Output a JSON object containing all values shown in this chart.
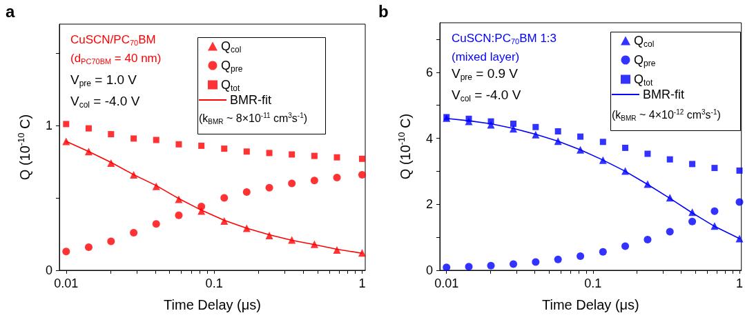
{
  "chart_data": [
    {
      "type": "scatter",
      "title": "a",
      "subtitle": "CuSCN/PC$_{70}$BM\n(d$_{PC70BM}$ = 40 nm)",
      "xlabel": "Time Delay (μs)",
      "ylabel": "Q (10$^{-10}$ C)",
      "legend_title": "(k$_{BMR}$ ~ 8×10$^{-11}$ cm$^{3}$s$^{-1}$)",
      "annotations": [
        "V$_{pre}$ = 1.0 V",
        "V$_{col}$ = -4.0 V"
      ],
      "log": "x",
      "grid": false,
      "legend": "top right",
      "xlim": [
        0.009,
        1.05
      ],
      "xticks": [
        0.01,
        {
          "value": 0.02,
          "label": null
        },
        {
          "value": 0.03,
          "label": null
        },
        {
          "value": 0.04,
          "label": null
        },
        {
          "value": 0.05,
          "label": null
        },
        {
          "value": 0.06,
          "label": null
        },
        {
          "value": 0.07,
          "label": null
        },
        {
          "value": 0.08,
          "label": null
        },
        {
          "value": 0.09,
          "label": null
        },
        0.1,
        {
          "value": 0.2,
          "label": null
        },
        {
          "value": 0.3,
          "label": null
        },
        {
          "value": 0.4,
          "label": null
        },
        {
          "value": 0.5,
          "label": null
        },
        {
          "value": 0.6,
          "label": null
        },
        {
          "value": 0.7,
          "label": null
        },
        {
          "value": 0.8,
          "label": null
        },
        {
          "value": 0.9,
          "label": null
        },
        1
      ],
      "ylim": [
        0,
        1.7
      ],
      "yticks": [
        0,
        {
          "value": 0.5,
          "label": null
        },
        1,
        {
          "value": 1.5,
          "label": null
        }
      ],
      "x": [
        0.01,
        0.0142,
        0.0201,
        0.0286,
        0.0406,
        0.0577,
        0.082,
        0.117,
        0.166,
        0.236,
        0.335,
        0.476,
        0.676,
        1
      ],
      "series": [
        {
          "name": "Q$_{col}$",
          "marker": "triangle",
          "color": "#ff0000",
          "values": [
            0.89,
            0.82,
            0.74,
            0.66,
            0.58,
            0.49,
            0.41,
            0.34,
            0.29,
            0.24,
            0.21,
            0.18,
            0.14,
            0.12
          ]
        },
        {
          "name": "Q$_{pre}$",
          "marker": "circle",
          "color": "#ff0000",
          "values": [
            0.13,
            0.16,
            0.2,
            0.26,
            0.32,
            0.38,
            0.44,
            0.5,
            0.54,
            0.57,
            0.6,
            0.62,
            0.64,
            0.66
          ]
        },
        {
          "name": "Q$_{tot}$",
          "marker": "square",
          "color": "#ff0000",
          "values": [
            1.01,
            0.98,
            0.94,
            0.91,
            0.9,
            0.87,
            0.86,
            0.84,
            0.82,
            0.81,
            0.8,
            0.79,
            0.78,
            0.77
          ]
        },
        {
          "name": "BMR-fit",
          "type": "line",
          "marker": "none",
          "line_style": "solid",
          "color": "#ff0000",
          "values": [
            0.89,
            0.82,
            0.745,
            0.66,
            0.585,
            0.495,
            0.415,
            0.345,
            0.29,
            0.245,
            0.207,
            0.177,
            0.145,
            0.118
          ]
        }
      ]
    },
    {
      "type": "scatter",
      "title": "b",
      "subtitle": "CuSCN:PC$_{70}$BM 1:3\n(mixed layer)",
      "xlabel": "Time Delay (μs)",
      "ylabel": "Q (10$^{-10}$ C)",
      "legend_title": "(k$_{BMR}$ ~ 4×10$^{-12}$ cm$^{3}$s$^{-1}$)",
      "annotations": [
        "V$_{pre}$ = 0.9 V",
        "V$_{col}$ = -4.0 V"
      ],
      "log": "x",
      "grid": false,
      "legend": "top right",
      "xlim": [
        0.009,
        1.03
      ],
      "xticks": [
        0.01,
        {
          "value": 0.02,
          "label": null
        },
        {
          "value": 0.03,
          "label": null
        },
        {
          "value": 0.04,
          "label": null
        },
        {
          "value": 0.05,
          "label": null
        },
        {
          "value": 0.06,
          "label": null
        },
        {
          "value": 0.07,
          "label": null
        },
        {
          "value": 0.08,
          "label": null
        },
        {
          "value": 0.09,
          "label": null
        },
        0.1,
        {
          "value": 0.2,
          "label": null
        },
        {
          "value": 0.3,
          "label": null
        },
        {
          "value": 0.4,
          "label": null
        },
        {
          "value": 0.5,
          "label": null
        },
        {
          "value": 0.6,
          "label": null
        },
        {
          "value": 0.7,
          "label": null
        },
        {
          "value": 0.8,
          "label": null
        },
        {
          "value": 0.9,
          "label": null
        },
        1
      ],
      "ylim": [
        0,
        7.5
      ],
      "yticks": [
        0,
        {
          "value": 1,
          "label": null
        },
        2,
        {
          "value": 3,
          "label": null
        },
        4,
        {
          "value": 5,
          "label": null
        },
        6,
        {
          "value": 7,
          "label": null
        }
      ],
      "x": [
        0.01,
        0.0142,
        0.0201,
        0.0286,
        0.0406,
        0.0577,
        0.082,
        0.117,
        0.166,
        0.236,
        0.335,
        0.476,
        0.676,
        1
      ],
      "series": [
        {
          "name": "Q$_{col}$",
          "marker": "triangle",
          "color": "#0000ff",
          "values": [
            4.61,
            4.51,
            4.41,
            4.29,
            4.11,
            3.91,
            3.65,
            3.34,
            3.01,
            2.61,
            2.2,
            1.76,
            1.34,
            0.96
          ]
        },
        {
          "name": "Q$_{pre}$",
          "marker": "circle",
          "color": "#0000ff",
          "values": [
            0.09,
            0.11,
            0.14,
            0.19,
            0.25,
            0.33,
            0.43,
            0.56,
            0.73,
            0.93,
            1.17,
            1.48,
            1.79,
            2.07
          ]
        },
        {
          "name": "Q$_{tot}$",
          "marker": "square",
          "color": "#0000ff",
          "values": [
            4.64,
            4.59,
            4.51,
            4.44,
            4.34,
            4.21,
            4.05,
            3.89,
            3.71,
            3.53,
            3.36,
            3.22,
            3.1,
            3.02
          ]
        },
        {
          "name": "BMR-fit",
          "type": "line",
          "marker": "none",
          "line_style": "solid",
          "color": "#0000ff",
          "values": [
            4.6,
            4.53,
            4.44,
            4.3,
            4.12,
            3.91,
            3.65,
            3.34,
            3.0,
            2.6,
            2.18,
            1.74,
            1.33,
            0.96
          ]
        }
      ]
    }
  ]
}
